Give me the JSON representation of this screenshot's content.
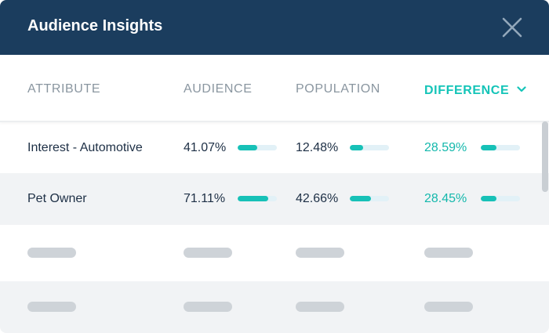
{
  "dialog": {
    "title": "Audience Insights"
  },
  "columns": [
    {
      "label": "ATTRIBUTE"
    },
    {
      "label": "AUDIENCE"
    },
    {
      "label": "POPULATION"
    },
    {
      "label": "DIFFERENCE",
      "sorted": true
    }
  ],
  "rows": [
    {
      "attribute": "Interest - Automotive",
      "audience": {
        "text": "41.07%",
        "bar": 0.5
      },
      "population": {
        "text": "12.48%",
        "bar": 0.34
      },
      "difference": {
        "text": "28.59%",
        "bar": 0.4
      }
    },
    {
      "attribute": "Pet Owner",
      "audience": {
        "text": "71.11%",
        "bar": 0.78
      },
      "population": {
        "text": "42.66%",
        "bar": 0.54
      },
      "difference": {
        "text": "28.45%",
        "bar": 0.4
      }
    }
  ],
  "colors": {
    "header_bg": "#1b3d5e",
    "accent": "#14c4b8",
    "bar_fill": "#17c1b7",
    "bar_track": "#e2f1f7",
    "placeholder": "#ced3d8"
  },
  "icons": {
    "close": "close-icon",
    "sort": "chevron-down-icon"
  }
}
